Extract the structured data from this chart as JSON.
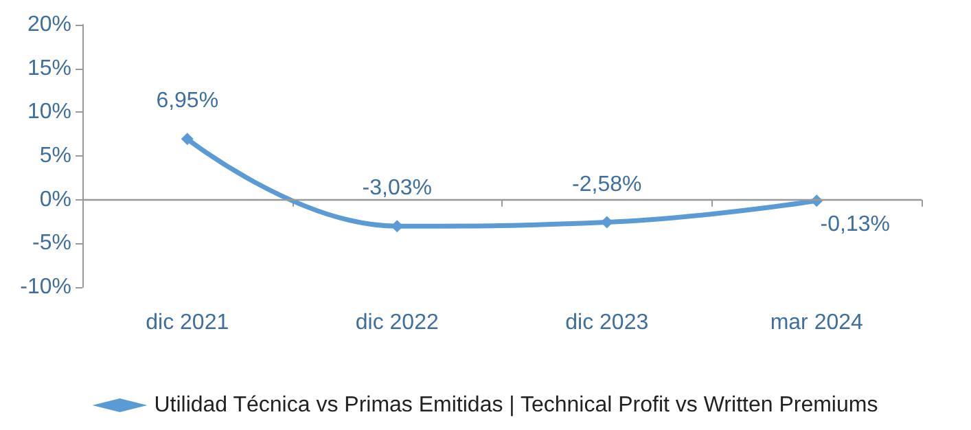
{
  "chart_data": {
    "type": "line",
    "categories": [
      "dic 2021",
      "dic 2022",
      "dic 2023",
      "mar 2024"
    ],
    "series": [
      {
        "name": "Utilidad Técnica vs Primas Emitidas | Technical Profit vs Written Premiums",
        "color": "#5b9bd5",
        "values": [
          6.95,
          -3.03,
          -2.58,
          -0.13
        ],
        "value_labels": [
          "6,95%",
          "-3,03%",
          "-2,58%",
          "-0,13%"
        ]
      }
    ],
    "ylim": [
      -10,
      20
    ],
    "yticks": [
      {
        "value": -10,
        "label": "-10%"
      },
      {
        "value": -5,
        "label": "-5%"
      },
      {
        "value": 0,
        "label": "0%"
      },
      {
        "value": 5,
        "label": "5%"
      },
      {
        "value": 10,
        "label": "10%"
      },
      {
        "value": 15,
        "label": "15%"
      },
      {
        "value": 20,
        "label": "20%"
      }
    ],
    "ref_lines": [
      {
        "axis": "y",
        "value": 0,
        "color": "#999999",
        "line_style": "solid"
      }
    ],
    "grid": false,
    "legend": "bottom",
    "marker": "diamond",
    "line_style": "solid"
  }
}
